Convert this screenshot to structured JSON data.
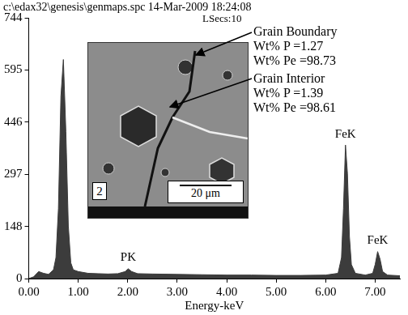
{
  "chart_data": {
    "type": "area",
    "title": "c:\\edax32\\genesis\\genmaps.spc 14-Mar-2009 18:24:08",
    "subtitle": "LSecs:10",
    "x_label": "Energy-keV",
    "x": [
      0.0,
      0.1,
      0.2,
      0.3,
      0.4,
      0.5,
      0.55,
      0.6,
      0.65,
      0.7,
      0.75,
      0.8,
      0.85,
      0.9,
      1.0,
      1.2,
      1.4,
      1.6,
      1.8,
      1.95,
      2.01,
      2.08,
      2.2,
      2.5,
      3.0,
      3.5,
      4.0,
      4.5,
      5.0,
      5.5,
      6.0,
      6.25,
      6.32,
      6.36,
      6.4,
      6.44,
      6.48,
      6.52,
      6.6,
      6.8,
      6.95,
      7.0,
      7.05,
      7.1,
      7.15,
      7.25,
      7.5
    ],
    "values": [
      0,
      5,
      20,
      15,
      12,
      25,
      60,
      200,
      520,
      625,
      420,
      150,
      45,
      25,
      20,
      15,
      14,
      13,
      14,
      20,
      28,
      20,
      14,
      13,
      12,
      11,
      10,
      10,
      9,
      9,
      10,
      15,
      60,
      200,
      381,
      300,
      120,
      40,
      15,
      10,
      15,
      40,
      77,
      55,
      20,
      10,
      8
    ],
    "color": "#3c3c3c",
    "xlim": [
      0,
      7.5
    ],
    "xticks": [
      {
        "value": 0,
        "label": "0.00"
      },
      {
        "value": 1,
        "label": "1.00"
      },
      {
        "value": 2,
        "label": "2.00"
      },
      {
        "value": 3,
        "label": "3.00"
      },
      {
        "value": 4,
        "label": "4.00"
      },
      {
        "value": 5,
        "label": "5.00"
      },
      {
        "value": 6,
        "label": "6.00"
      },
      {
        "value": 7,
        "label": "7.00"
      }
    ],
    "ylim": [
      0,
      744
    ],
    "yticks": [
      0,
      148,
      297,
      446,
      595,
      744
    ],
    "grid": false,
    "peaks": [
      {
        "label": "PK",
        "x": 2.01
      },
      {
        "label": "FeK",
        "x": 6.4
      },
      {
        "label": "FeK",
        "x": 7.05
      }
    ],
    "inset": {
      "panel_label": "2",
      "scale_bar": "20 μm"
    },
    "annotations": [
      {
        "lines": [
          "Grain Boundary",
          "Wt% P =1.27",
          "Wt% Pe =98.73"
        ]
      },
      {
        "lines": [
          "Grain Interior",
          "Wt% P =1.39",
          "Wt% Pe =98.61"
        ]
      }
    ]
  }
}
